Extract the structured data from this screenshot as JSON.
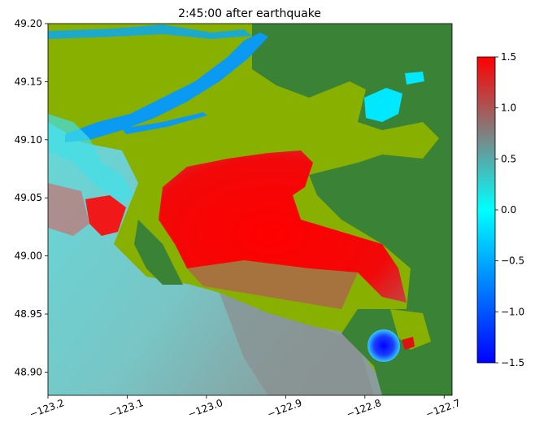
{
  "chart_data": {
    "type": "heatmap",
    "title": "2:45:00 after earthquake",
    "xlabel": "",
    "ylabel": "",
    "xlim": [
      -123.2,
      -122.69
    ],
    "ylim": [
      48.88,
      49.2
    ],
    "x_ticks": [
      "−123.2",
      "−123.1",
      "−123.0",
      "−122.9",
      "−122.8",
      "−122.7"
    ],
    "x_tick_values": [
      -123.2,
      -123.1,
      -123.0,
      -122.9,
      -122.8,
      -122.7
    ],
    "y_ticks": [
      "48.90",
      "48.95",
      "49.00",
      "49.05",
      "49.10",
      "49.15",
      "49.20"
    ],
    "y_tick_values": [
      48.9,
      48.95,
      49.0,
      49.05,
      49.1,
      49.15,
      49.2
    ],
    "colorbar": {
      "range": [
        -1.5,
        1.5
      ],
      "ticks": [
        "1.5",
        "1.0",
        "0.5",
        "0.0",
        "−0.5",
        "−1.0",
        "−1.5"
      ],
      "tick_values": [
        1.5,
        1.0,
        0.5,
        0.0,
        -0.5,
        -1.0,
        -1.5
      ],
      "colors": [
        "#0000ff",
        "#00ffff",
        "#808080",
        "#ff0000"
      ]
    },
    "land_colors": {
      "lowland": "#88b000",
      "upland": "#3a8235",
      "river": "#0a9af2"
    }
  }
}
